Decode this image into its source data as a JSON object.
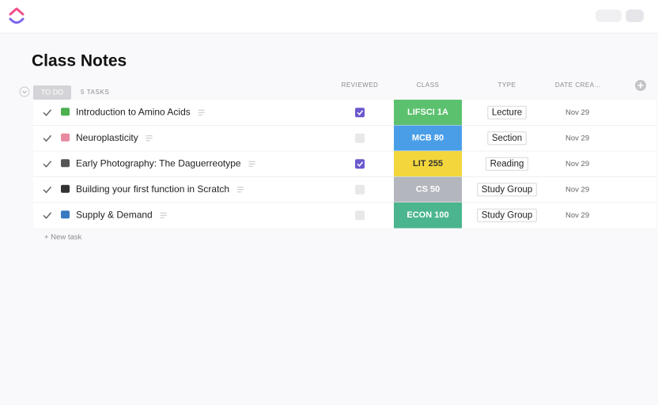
{
  "header": {
    "title": "Class Notes"
  },
  "group": {
    "status": "TO DO",
    "count": "5 TASKS",
    "new_task": "+ New task"
  },
  "columns": [
    "REVIEWED",
    "CLASS",
    "TYPE",
    "DATE CREA…"
  ],
  "tasks": [
    {
      "name": "Introduction to Amino Acids",
      "reviewed": true,
      "class": "LIFSCI 1A",
      "class_color": "#5cc16f",
      "class_text_color": "#ffffff",
      "type": "Lecture",
      "date": "Nov 29"
    },
    {
      "name": "Neuroplasticity",
      "reviewed": false,
      "class": "MCB 80",
      "class_color": "#4a9ee8",
      "class_text_color": "#ffffff",
      "type": "Section",
      "date": "Nov 29"
    },
    {
      "name": "Early Photography: The Daguerreotype",
      "reviewed": true,
      "class": "LIT 255",
      "class_color": "#f2d63b",
      "class_text_color": "#333333",
      "type": "Reading",
      "date": "Nov 29"
    },
    {
      "name": "Building your first function in Scratch",
      "reviewed": false,
      "class": "CS 50",
      "class_color": "#b3b7bd",
      "class_text_color": "#ffffff",
      "type": "Study Group",
      "date": "Nov 29"
    },
    {
      "name": "Supply & Demand",
      "reviewed": false,
      "class": "ECON 100",
      "class_color": "#4bb58f",
      "class_text_color": "#ffffff",
      "type": "Study Group",
      "date": "Nov 29"
    }
  ]
}
